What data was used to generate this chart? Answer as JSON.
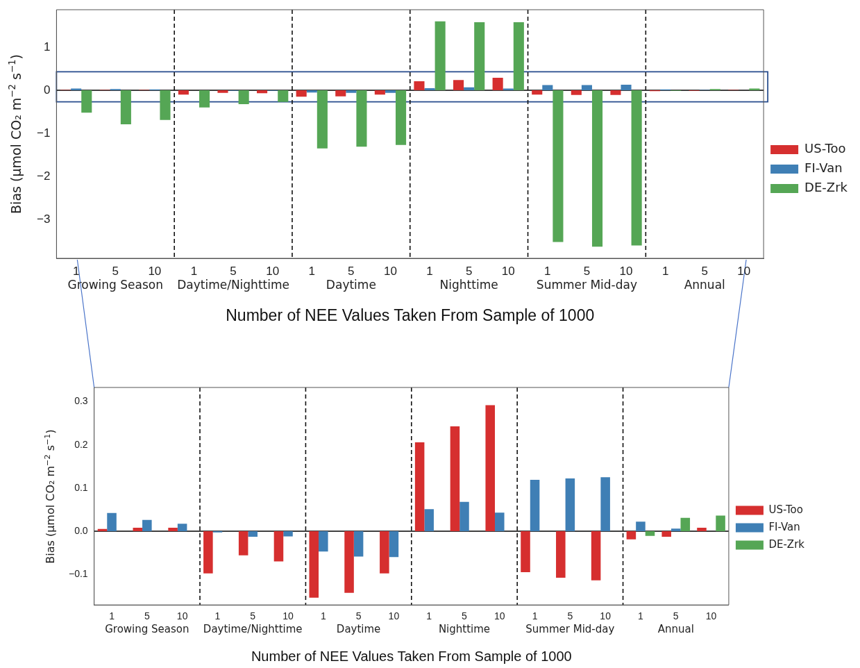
{
  "chart_data": [
    {
      "type": "bar",
      "ylabel": "Bias (μmol CO₂ m$^{−2}$ s$^{−1}$)",
      "xlabel": "Number of NEE Values Taken From Sample of 1000",
      "categories": [
        "1",
        "5",
        "10",
        "1",
        "5",
        "10",
        "1",
        "5",
        "10",
        "1",
        "5",
        "10",
        "1",
        "5",
        "10",
        "1",
        "5",
        "10"
      ],
      "series": [
        {
          "name": "US-Too",
          "color": "#d62f2f",
          "values": [
            0.01,
            0.01,
            0.01,
            -0.1,
            -0.06,
            -0.07,
            -0.15,
            -0.14,
            -0.1,
            0.21,
            0.24,
            0.29,
            -0.1,
            -0.11,
            -0.11,
            -0.02,
            -0.01,
            0.01
          ]
        },
        {
          "name": "FI-Van",
          "color": "#3f7fb5",
          "values": [
            0.04,
            0.03,
            0.02,
            0,
            -0.01,
            -0.01,
            -0.05,
            -0.06,
            -0.06,
            0.05,
            0.07,
            0.04,
            0.12,
            0.12,
            0.13,
            0.02,
            0.01,
            0
          ]
        },
        {
          "name": "DE-Zrk",
          "color": "#55a655",
          "values": [
            -0.52,
            -0.79,
            -0.69,
            -0.4,
            -0.32,
            -0.27,
            -1.35,
            -1.31,
            -1.27,
            1.6,
            1.58,
            1.58,
            -3.52,
            -3.63,
            -3.6,
            -0.01,
            0.03,
            0.04
          ]
        }
      ],
      "ylim": [
        -3.9,
        1.87
      ],
      "yticks": [
        {
          "value": -3,
          "label": "−3"
        },
        {
          "value": -2,
          "label": "−2"
        },
        {
          "value": -1,
          "label": "−1"
        },
        0,
        1
      ],
      "ref_lines": [
        {
          "axis": "y",
          "value": 0,
          "color": "#000000"
        }
      ],
      "annotations": [
        "Growing Season",
        "Daytime/Nighttime",
        "Daytime",
        "Nighttime",
        "Summer Mid-day",
        "Annual"
      ],
      "legend": "right"
    },
    {
      "type": "bar",
      "ylabel": "Bias (μmol CO₂ m$^{−2}$ s$^{−1}$)",
      "xlabel": "Number of NEE Values Taken From Sample of 1000",
      "categories": [
        "1",
        "5",
        "10",
        "1",
        "5",
        "10",
        "1",
        "5",
        "10",
        "1",
        "5",
        "10",
        "1",
        "5",
        "10",
        "1",
        "5",
        "10"
      ],
      "series": [
        {
          "name": "US-Too",
          "color": "#d62f2f",
          "values": [
            0.005,
            0.008,
            0.008,
            -0.098,
            -0.056,
            -0.07,
            -0.154,
            -0.143,
            -0.098,
            0.206,
            0.243,
            0.292,
            -0.095,
            -0.108,
            -0.114,
            -0.019,
            -0.013,
            0.008
          ]
        },
        {
          "name": "FI-Van",
          "color": "#3f7fb5",
          "values": [
            0.042,
            0.026,
            0.017,
            -0.003,
            -0.013,
            -0.012,
            -0.047,
            -0.059,
            -0.06,
            0.051,
            0.068,
            0.043,
            0.119,
            0.122,
            0.125,
            0.022,
            0.006,
            0.0
          ]
        },
        {
          "name": "DE-Zrk",
          "color": "#55a655",
          "values": [
            null,
            null,
            null,
            null,
            null,
            null,
            null,
            null,
            null,
            null,
            null,
            null,
            null,
            null,
            null,
            -0.011,
            0.031,
            0.036
          ]
        }
      ],
      "ylim": [
        -0.171,
        0.333
      ],
      "yticks": [
        {
          "value": -0.1,
          "label": "−0.1"
        },
        {
          "value": 0,
          "label": "0.0"
        },
        {
          "value": 0.1,
          "label": "0.1"
        },
        {
          "value": 0.2,
          "label": "0.2"
        },
        {
          "value": 0.3,
          "label": "0.3"
        }
      ],
      "ref_lines": [
        {
          "axis": "y",
          "value": 0,
          "color": "#000000"
        }
      ],
      "annotations": [
        "Growing Season",
        "Daytime/Nighttime",
        "Daytime",
        "Nighttime",
        "Summer Mid-day",
        "Annual"
      ],
      "legend": "right"
    }
  ]
}
